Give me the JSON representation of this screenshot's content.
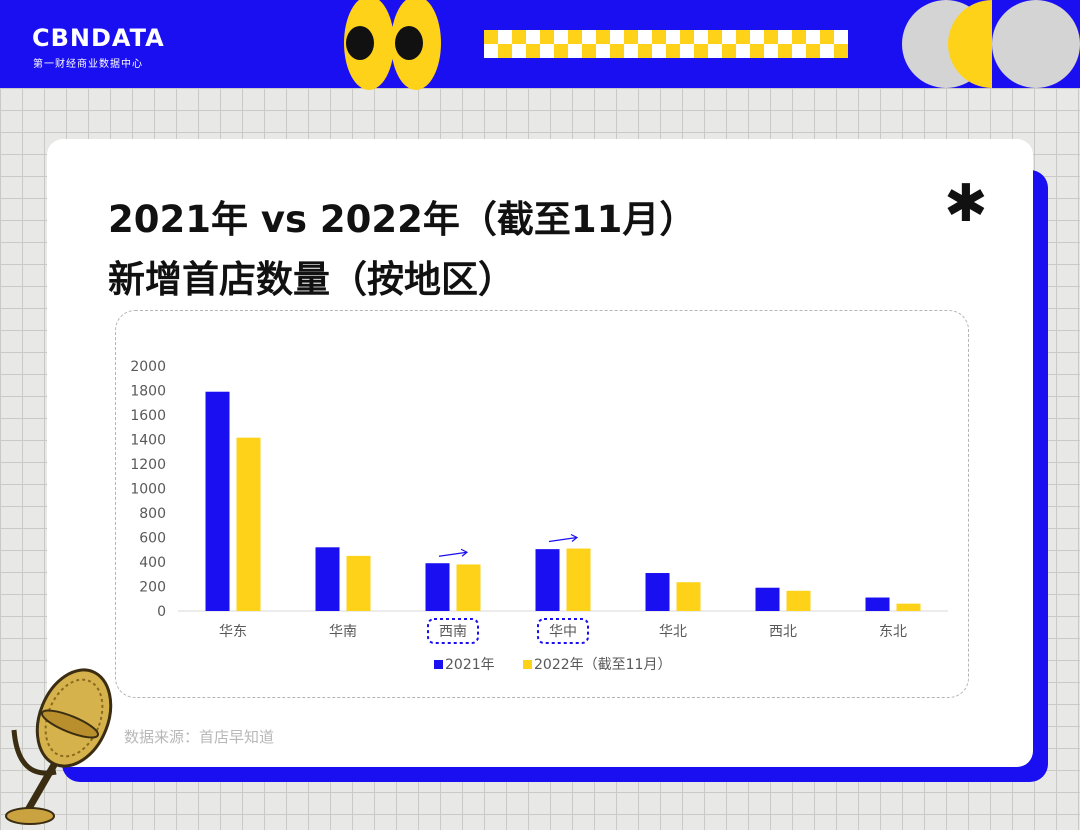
{
  "brand": {
    "logo": "CBNDATA",
    "subtitle": "第一财经商业数据中心"
  },
  "title": {
    "line1": "2021年 vs 2022年（截至11月）",
    "line2": "新增首店数量（按地区）"
  },
  "source": "数据来源：首店早知道",
  "colors": {
    "brand_blue": "#1a0ff0",
    "accent_yellow": "#ffd21a",
    "series_2021": "#1a0ff0",
    "series_2022": "#ffd21a"
  },
  "icons": [
    "eyes-graphic",
    "checker-strip",
    "asterisk-icon",
    "microphone-graphic"
  ],
  "chart_data": {
    "type": "bar",
    "categories": [
      "华东",
      "华南",
      "西南",
      "华中",
      "华北",
      "西北",
      "东北"
    ],
    "highlighted_categories": [
      "西南",
      "华中"
    ],
    "trend_arrows_on": [
      "西南",
      "华中"
    ],
    "series": [
      {
        "name": "2021年",
        "values": [
          1790,
          520,
          390,
          505,
          310,
          190,
          110
        ]
      },
      {
        "name": "2022年（截至11月）",
        "values": [
          1415,
          450,
          380,
          510,
          235,
          165,
          60
        ]
      }
    ],
    "yticks": [
      0,
      200,
      400,
      600,
      800,
      1000,
      1200,
      1400,
      1600,
      1800,
      2000
    ],
    "ylim": [
      0,
      2000
    ],
    "grid": false,
    "legend_position": "bottom"
  }
}
